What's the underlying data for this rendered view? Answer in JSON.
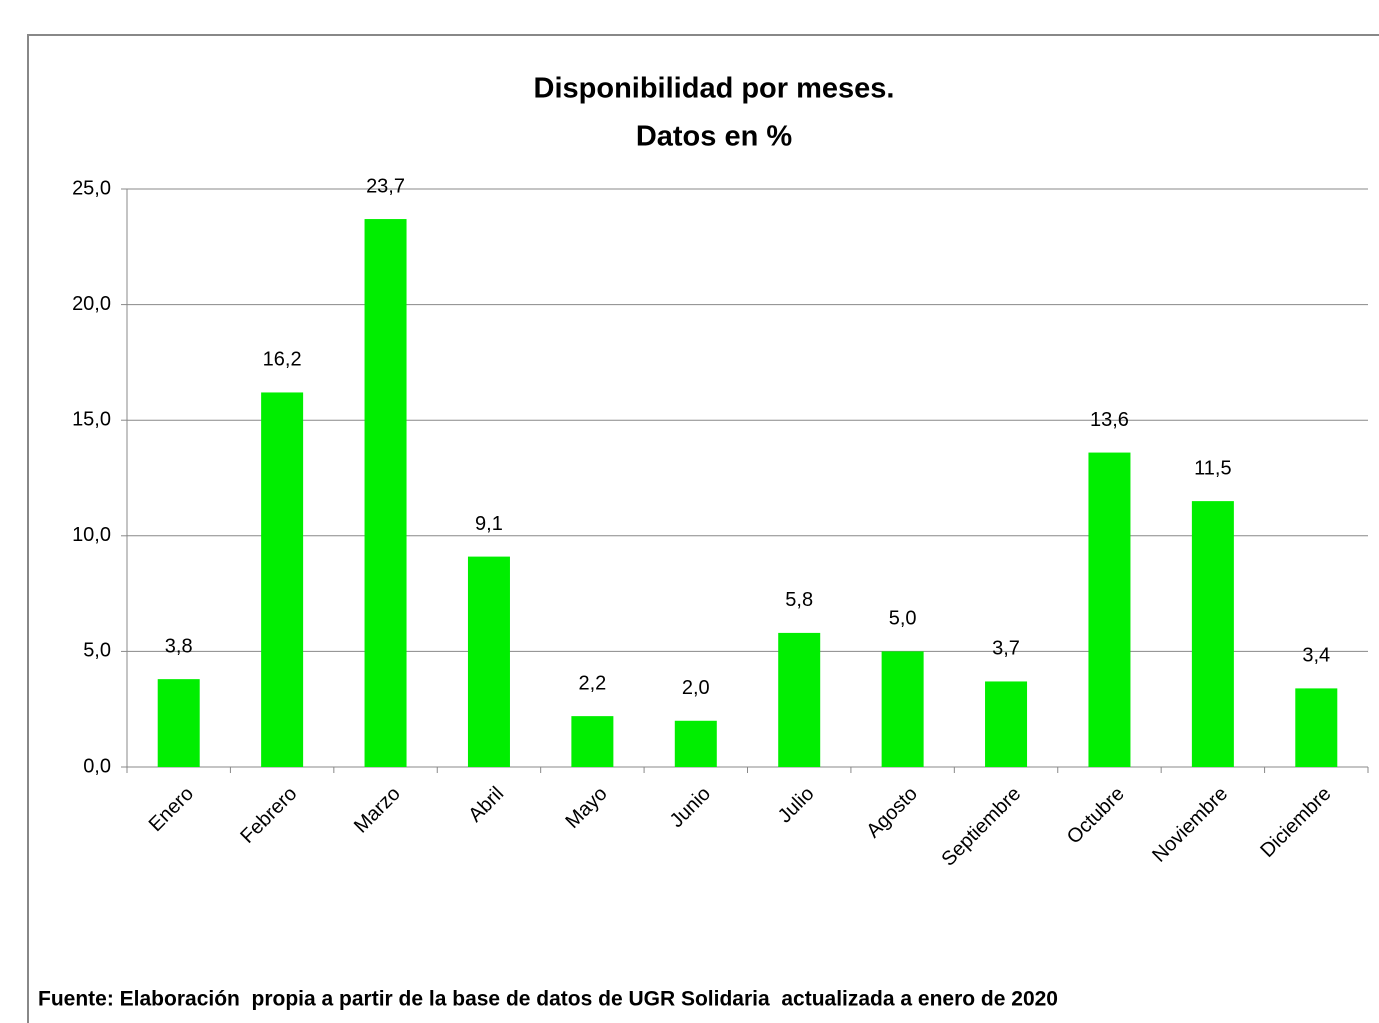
{
  "chart_data": {
    "type": "bar",
    "title": "Disponibilidad por meses.",
    "subtitle": "Datos en %",
    "note": "Fuente: Elaboración  propia a partir de la base de datos de UGR Solidaria  actualizada a enero de 2020",
    "categories": [
      "Enero",
      "Febrero",
      "Marzo",
      "Abril",
      "Mayo",
      "Junio",
      "Julio",
      "Agosto",
      "Septiembre",
      "Octubre",
      "Noviembre",
      "Diciembre"
    ],
    "values": [
      3.8,
      16.2,
      23.7,
      9.1,
      2.2,
      2.0,
      5.8,
      5.0,
      3.7,
      13.6,
      11.5,
      3.4
    ],
    "value_labels": [
      "3,8",
      "16,2",
      "23,7",
      "9,1",
      "2,2",
      "2,0",
      "5,8",
      "5,0",
      "3,7",
      "13,6",
      "11,5",
      "3,4"
    ],
    "color": "#00ee00",
    "ylim": [
      0,
      25
    ],
    "yticks": [
      {
        "value": 0,
        "label": "0,0"
      },
      {
        "value": 5,
        "label": "5,0"
      },
      {
        "value": 10,
        "label": "10,0"
      },
      {
        "value": 15,
        "label": "15,0"
      },
      {
        "value": 20,
        "label": "20,0"
      },
      {
        "value": 25,
        "label": "25,0"
      }
    ],
    "grid": true
  }
}
